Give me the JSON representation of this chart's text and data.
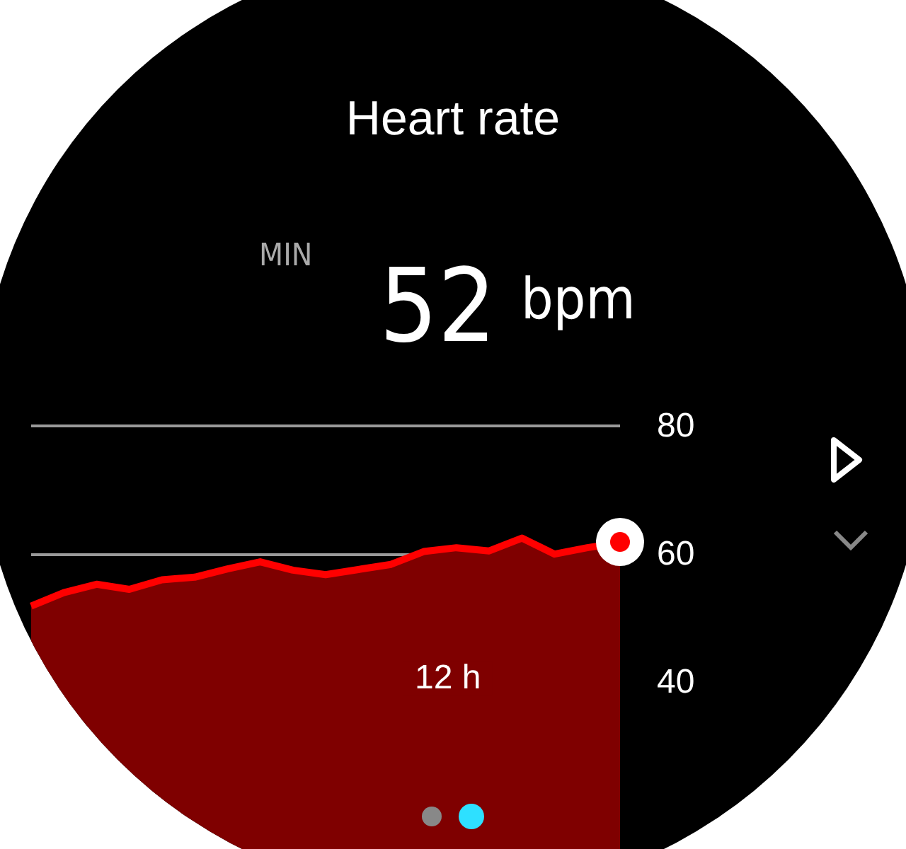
{
  "chart_data": {
    "type": "area",
    "title": "Heart rate",
    "annotations": [
      "MIN",
      "52",
      "bpm",
      "12 h"
    ],
    "categories": [
      null,
      null,
      null,
      null,
      null,
      null,
      null,
      null,
      null,
      null,
      null,
      null,
      null,
      null,
      null,
      null,
      null,
      null,
      null
    ],
    "series": [
      {
        "color": "#ff0000",
        "values": [
          51.9,
          54,
          55.3,
          54.5,
          56,
          56.4,
          57.7,
          58.8,
          57.5,
          56.8,
          57.6,
          58.4,
          60.4,
          61,
          60.5,
          62.5,
          60,
          61,
          61.8
        ]
      }
    ],
    "ylim": [
      14,
      80
    ],
    "yticks": [
      40,
      60,
      80
    ],
    "grid": "y",
    "tick_labels": "y"
  }
}
